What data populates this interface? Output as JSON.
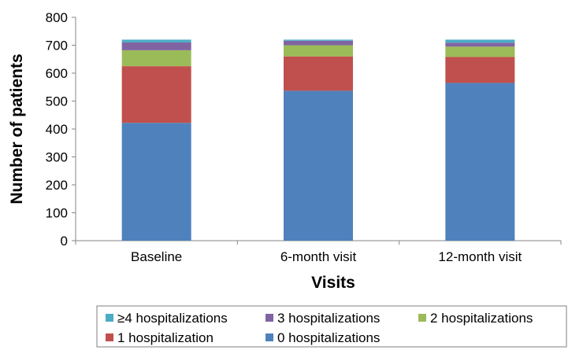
{
  "chart_data": {
    "type": "bar",
    "stacked": true,
    "categories": [
      "Baseline",
      "6-month visit",
      "12-month visit"
    ],
    "xlabel": "Visits",
    "ylabel": "Number of patients",
    "ylim": [
      0,
      800
    ],
    "yticks": [
      "0",
      "100",
      "200",
      "300",
      "400",
      "500",
      "600",
      "700",
      "800"
    ],
    "grid": false,
    "legend_position": "bottom",
    "series": [
      {
        "name": "0 hospitalizations",
        "color": "#4f81bd",
        "values": [
          422,
          537,
          565
        ]
      },
      {
        "name": "1 hospitalization",
        "color": "#c0504d",
        "values": [
          203,
          123,
          93
        ]
      },
      {
        "name": "2 hospitalizations",
        "color": "#9bbb59",
        "values": [
          57,
          40,
          37
        ]
      },
      {
        "name": "3 hospitalizations",
        "color": "#8064a2",
        "values": [
          28,
          16,
          14
        ]
      },
      {
        "name": "≥4 hospitalizations",
        "color": "#4bacc6",
        "values": [
          10,
          4,
          11
        ]
      }
    ]
  }
}
